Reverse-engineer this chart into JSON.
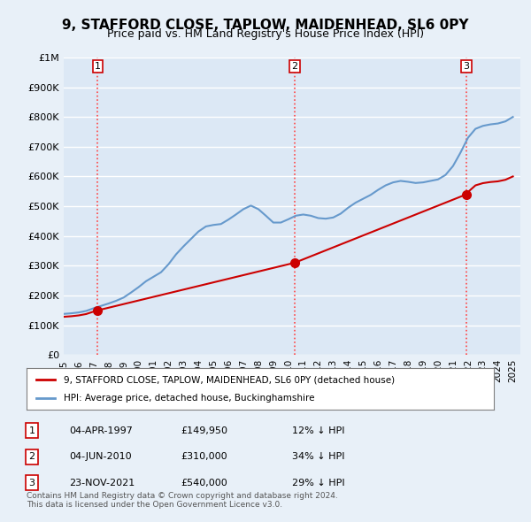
{
  "title": "9, STAFFORD CLOSE, TAPLOW, MAIDENHEAD, SL6 0PY",
  "subtitle": "Price paid vs. HM Land Registry's House Price Index (HPI)",
  "background_color": "#e8f0f8",
  "plot_bg_color": "#dce8f5",
  "grid_color": "#ffffff",
  "ylabel": "",
  "xlabel": "",
  "ylim": [
    0,
    1000000
  ],
  "yticks": [
    0,
    100000,
    200000,
    300000,
    400000,
    500000,
    600000,
    700000,
    800000,
    900000,
    1000000
  ],
  "ytick_labels": [
    "£0",
    "£100K",
    "£200K",
    "£300K",
    "£400K",
    "£500K",
    "£600K",
    "£700K",
    "£800K",
    "£900K",
    "£1M"
  ],
  "sale_dates": [
    1997.27,
    2010.43,
    2021.9
  ],
  "sale_prices": [
    149950,
    310000,
    540000
  ],
  "sale_labels": [
    "1",
    "2",
    "3"
  ],
  "vline_color": "#ff4444",
  "vline_style": ":",
  "sale_point_color": "#cc0000",
  "hpi_line_color": "#6699cc",
  "price_line_color": "#cc0000",
  "legend_label_price": "9, STAFFORD CLOSE, TAPLOW, MAIDENHEAD, SL6 0PY (detached house)",
  "legend_label_hpi": "HPI: Average price, detached house, Buckinghamshire",
  "table_rows": [
    [
      "1",
      "04-APR-1997",
      "£149,950",
      "12% ↓ HPI"
    ],
    [
      "2",
      "04-JUN-2010",
      "£310,000",
      "34% ↓ HPI"
    ],
    [
      "3",
      "23-NOV-2021",
      "£540,000",
      "29% ↓ HPI"
    ]
  ],
  "footnote": "Contains HM Land Registry data © Crown copyright and database right 2024.\nThis data is licensed under the Open Government Licence v3.0.",
  "xmin": 1995.0,
  "xmax": 2025.5
}
